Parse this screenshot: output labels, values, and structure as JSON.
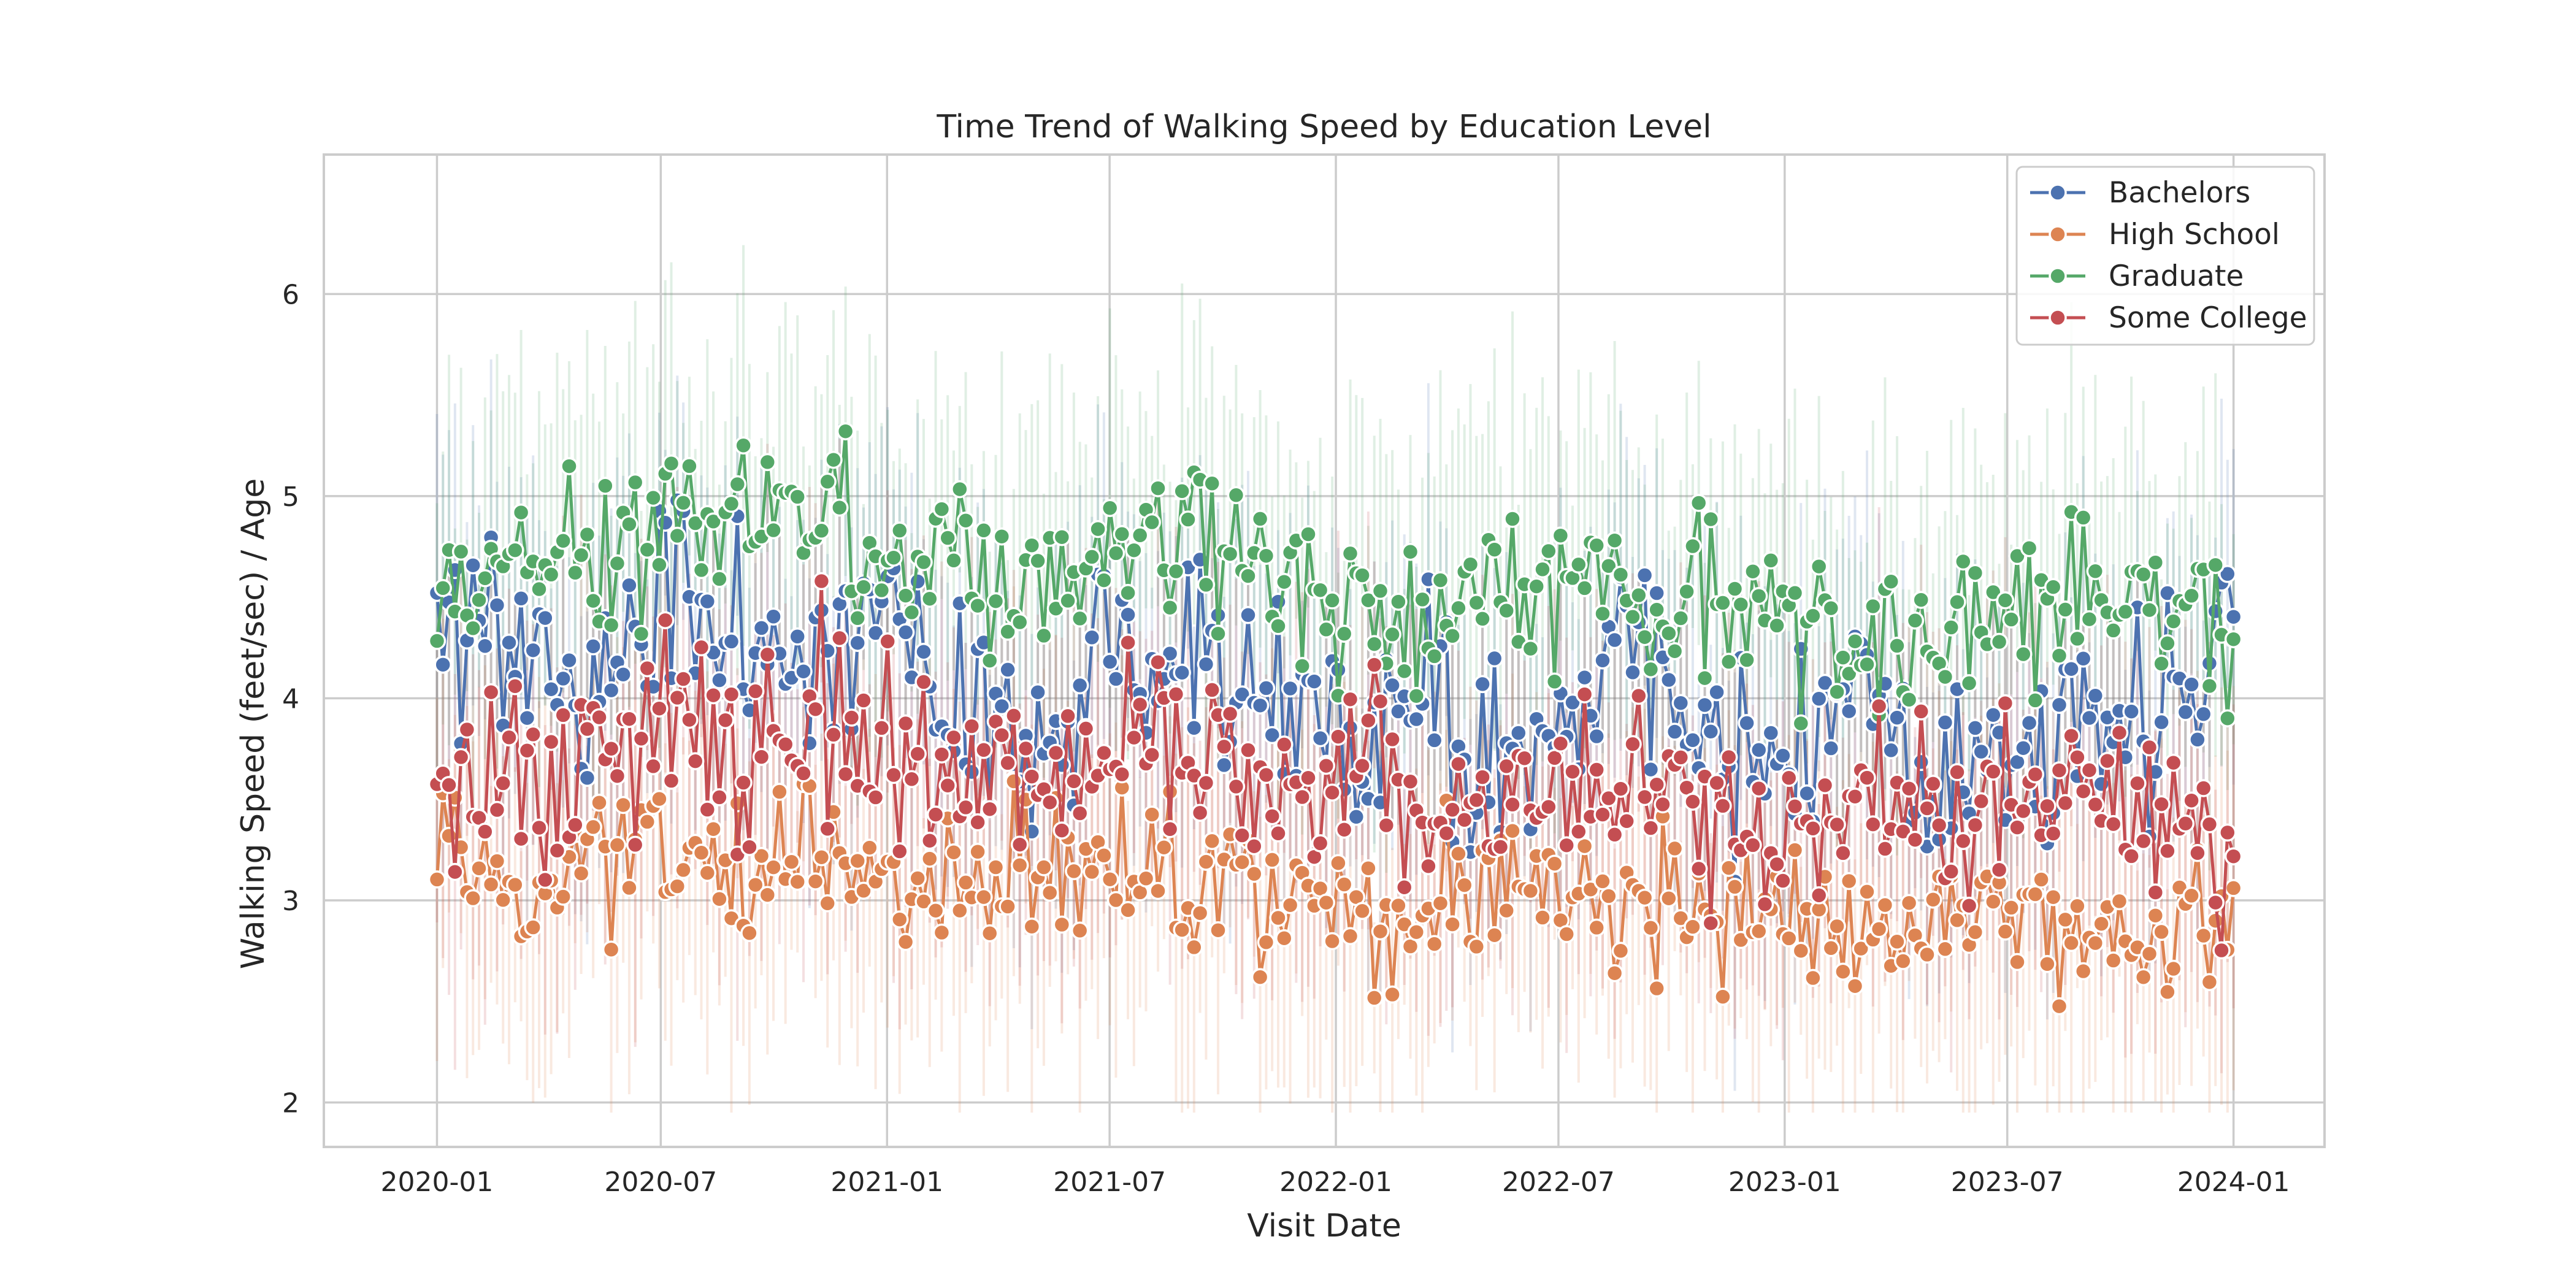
{
  "chart_data": {
    "type": "line",
    "title": "Time Trend of Walking Speed by Education Level",
    "xlabel": "Visit Date",
    "ylabel": "Walking Speed (feet/sec) / Age",
    "x_tick_labels": [
      "2020-01",
      "2020-07",
      "2021-01",
      "2021-07",
      "2022-01",
      "2022-07",
      "2023-01",
      "2023-07",
      "2024-01"
    ],
    "x_tick_dates": [
      "2020-01-01",
      "2020-07-01",
      "2021-01-01",
      "2021-07-01",
      "2022-01-01",
      "2022-07-01",
      "2023-01-01",
      "2023-07-01",
      "2024-01-01"
    ],
    "xlim": [
      "2019-10-01",
      "2024-03-15"
    ],
    "y_tick_labels": [
      "2",
      "3",
      "4",
      "5",
      "6"
    ],
    "y_ticks": [
      2,
      3,
      4,
      5,
      6
    ],
    "ylim": [
      1.78,
      6.69
    ],
    "grid": true,
    "legend_position": "top-right",
    "markers": "circle",
    "confidence_band": true,
    "series": [
      {
        "name": "Bachelors",
        "color": "#4c72b0",
        "dates": [
          "2020-01-01",
          "2020-03-01",
          "2020-05-01",
          "2020-07-01",
          "2020-09-01",
          "2020-11-01",
          "2021-01-01",
          "2021-03-01",
          "2021-05-01",
          "2021-07-01",
          "2021-09-01",
          "2021-11-01",
          "2022-01-01",
          "2022-03-01",
          "2022-05-01",
          "2022-07-01",
          "2022-09-01",
          "2022-11-01",
          "2023-01-01",
          "2023-03-01",
          "2023-05-01",
          "2023-07-01",
          "2023-09-01",
          "2023-11-01",
          "2024-01-01"
        ],
        "values": [
          4.5,
          4.2,
          4.0,
          4.6,
          4.3,
          4.1,
          4.4,
          3.9,
          3.8,
          4.2,
          4.1,
          4.0,
          3.9,
          4.2,
          3.7,
          4.0,
          4.3,
          3.8,
          3.6,
          3.9,
          3.5,
          3.7,
          4.0,
          3.8,
          4.4
        ]
      },
      {
        "name": "High School",
        "color": "#dd8452",
        "dates": [
          "2020-01-01",
          "2020-03-01",
          "2020-05-01",
          "2020-07-01",
          "2020-09-01",
          "2020-11-01",
          "2021-01-01",
          "2021-03-01",
          "2021-05-01",
          "2021-07-01",
          "2021-09-01",
          "2021-11-01",
          "2022-01-01",
          "2022-03-01",
          "2022-05-01",
          "2022-07-01",
          "2022-09-01",
          "2022-11-01",
          "2023-01-01",
          "2023-03-01",
          "2023-05-01",
          "2023-07-01",
          "2023-09-01",
          "2023-11-01",
          "2024-01-01"
        ],
        "values": [
          3.4,
          3.0,
          3.2,
          3.3,
          3.1,
          3.2,
          3.1,
          3.0,
          3.1,
          3.2,
          3.0,
          3.1,
          3.0,
          2.9,
          3.0,
          3.1,
          2.9,
          3.0,
          2.9,
          2.8,
          2.9,
          3.0,
          2.9,
          2.8,
          2.9
        ]
      },
      {
        "name": "Graduate",
        "color": "#55a868",
        "dates": [
          "2020-01-01",
          "2020-03-01",
          "2020-05-01",
          "2020-07-01",
          "2020-09-01",
          "2020-11-01",
          "2021-01-01",
          "2021-03-01",
          "2021-05-01",
          "2021-07-01",
          "2021-09-01",
          "2021-11-01",
          "2022-01-01",
          "2022-03-01",
          "2022-05-01",
          "2022-07-01",
          "2022-09-01",
          "2022-11-01",
          "2023-01-01",
          "2023-03-01",
          "2023-05-01",
          "2023-07-01",
          "2023-09-01",
          "2023-11-01",
          "2024-01-01"
        ],
        "values": [
          4.6,
          4.6,
          4.7,
          4.9,
          4.8,
          4.9,
          4.6,
          4.7,
          4.6,
          4.7,
          4.8,
          4.6,
          4.5,
          4.4,
          4.5,
          4.6,
          4.6,
          4.5,
          4.4,
          4.3,
          4.3,
          4.4,
          4.5,
          4.4,
          4.3
        ]
      },
      {
        "name": "Some College",
        "color": "#c44e52",
        "dates": [
          "2020-01-01",
          "2020-03-01",
          "2020-05-01",
          "2020-07-01",
          "2020-09-01",
          "2020-11-01",
          "2021-01-01",
          "2021-03-01",
          "2021-05-01",
          "2021-07-01",
          "2021-09-01",
          "2021-11-01",
          "2022-01-01",
          "2022-03-01",
          "2022-05-01",
          "2022-07-01",
          "2022-09-01",
          "2022-11-01",
          "2023-01-01",
          "2023-03-01",
          "2023-05-01",
          "2023-07-01",
          "2023-09-01",
          "2023-11-01",
          "2024-01-01"
        ],
        "values": [
          3.7,
          3.6,
          3.7,
          3.9,
          3.8,
          3.9,
          3.7,
          3.6,
          3.6,
          3.7,
          3.7,
          3.6,
          3.6,
          3.5,
          3.5,
          3.6,
          3.6,
          3.5,
          3.4,
          3.4,
          3.4,
          3.5,
          3.5,
          3.4,
          3.3
        ]
      }
    ]
  }
}
